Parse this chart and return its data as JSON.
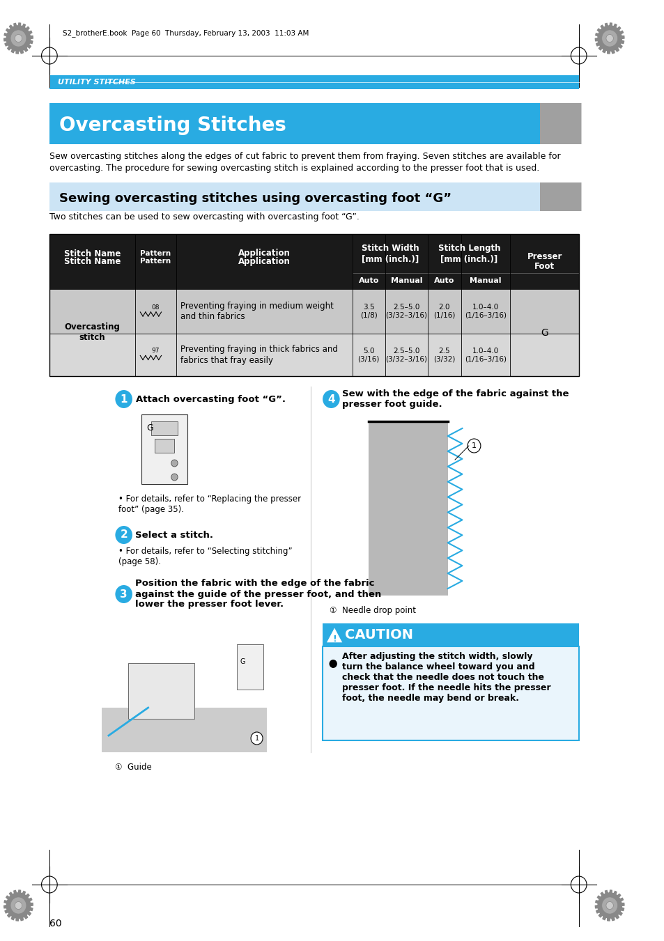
{
  "page_bg": "#ffffff",
  "utility_bar_color": "#29abe2",
  "utility_bar_text": "UTILITY STITCHES",
  "main_title": "Overcasting Stitches",
  "main_title_bg": "#29abe2",
  "subtitle_bg": "#cce4f5",
  "subtitle_text": "Sewing overcasting stitches using overcasting foot “G”",
  "intro_text1": "Sew overcasting stitches along the edges of cut fabric to prevent them from fraying. Seven stitches are available for",
  "intro_text2": "overcasting. The procedure for sewing overcasting stitch is explained according to the presser foot that is used.",
  "subtitle_desc": "Two stitches can be used to sew overcasting with overcasting foot “G”.",
  "header_meta": "S2_brotherE.book  Page 60  Thursday, February 13, 2003  11:03 AM",
  "table_header_bg": "#1a1a1a",
  "step_circle_color": "#29abe2",
  "page_number": "60",
  "step1_title": "Attach overcasting foot “G”.",
  "step1_bullet": "For details, refer to “Replacing the presser\nfoot” (page 35).",
  "step2_title": "Select a stitch.",
  "step2_bullet": "For details, refer to “Selecting stitching”\n(page 58).",
  "step3_title": "Position the fabric with the edge of the fabric\nagainst the guide of the presser foot, and then\nlower the presser foot lever.",
  "step3_label": "①  Guide",
  "step4_title": "Sew with the edge of the fabric against the\npresser foot guide.",
  "step4_label": "①  Needle drop point",
  "caution_title": "CAUTION",
  "caution_text": "After adjusting the stitch width, slowly\nturn the balance wheel toward you and\ncheck that the needle does not touch the\npresser foot. If the needle hits the presser\nfoot, the needle may bend or break.",
  "caution_bg": "#29abe2",
  "caution_body_bg": "#eaf5fc",
  "caution_body_border": "#29abe2",
  "gray_tab_color": "#a0a0a0"
}
